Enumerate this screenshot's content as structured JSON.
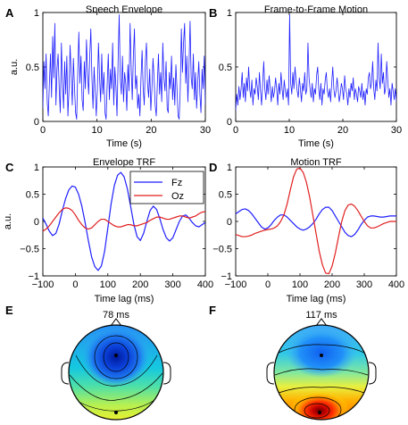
{
  "chart_data": [
    {
      "panel": "A",
      "type": "line",
      "title": "Speech Envelope",
      "xlabel": "Time (s)",
      "ylabel": "a.u.",
      "xlim": [
        0,
        30
      ],
      "ylim": [
        0,
        1
      ],
      "xticks": [
        "0",
        "10",
        "20",
        "30"
      ],
      "yticks": [
        "0",
        "0.5",
        "1"
      ],
      "grid": false,
      "series": [
        {
          "color": "#1f1fff",
          "values": [
            0.12,
            0.55,
            0.3,
            0.62,
            0.18,
            0.05,
            0.35,
            0.62,
            0.22,
            0.78,
            0.4,
            0.9,
            0.15,
            0.48,
            0.62,
            0.3,
            0.08,
            0.72,
            0.35,
            0.12,
            0.55,
            0.25,
            0.6,
            0.05,
            0.3,
            0.7,
            0.42,
            0.15,
            0.58,
            0.32,
            0.08,
            0.02,
            0.45,
            0.82,
            0.35,
            0.6,
            0.2,
            0.1,
            0.55,
            0.3,
            0.75,
            0.45,
            0.25,
            0.6,
            0.85,
            0.4,
            0.12,
            0.5,
            0.28,
            0.05,
            0.3,
            0.72,
            0.4,
            0.18,
            0.62,
            0.25,
            0.45,
            0.08,
            0.02,
            0.35,
            0.62,
            0.2,
            0.48,
            0.3,
            0.72,
            0.15,
            0.5,
            0.32,
            0.05,
            0.55,
            0.98,
            0.4,
            0.25,
            0.6,
            0.18,
            0.45,
            0.35,
            0.1,
            0.52,
            0.28,
            0.9,
            0.5,
            0.2,
            0.6,
            0.85,
            0.3,
            0.42,
            0.12,
            0.25,
            0.05,
            0.4,
            0.65,
            0.3,
            0.15,
            0.55,
            0.72,
            0.35,
            0.22,
            0.48,
            0.1,
            0.3,
            0.58,
            0.4,
            0.15,
            0.05,
            0.35,
            0.62,
            0.25,
            0.45,
            0.18,
            0.72,
            0.4,
            0.28,
            0.55,
            0.12,
            0.08,
            0.45,
            0.3,
            0.6,
            0.2,
            0.4,
            0.15,
            0.52,
            0.3,
            0.05,
            0.02,
            0.3,
            0.85,
            0.45,
            0.72,
            0.9,
            0.35,
            0.6,
            0.18,
            0.5,
            0.92,
            0.4,
            0.3,
            0.62,
            0.2,
            0.45,
            0.12,
            0.35,
            0.55,
            0.25,
            0.08,
            0.48,
            0.3,
            0.6,
            0.15
          ]
        }
      ]
    },
    {
      "panel": "B",
      "type": "line",
      "title": "Frame-to-Frame Motion",
      "xlabel": "Time (s)",
      "ylabel": "",
      "xlim": [
        0,
        30
      ],
      "ylim": [
        0,
        1
      ],
      "xticks": [
        "0",
        "10",
        "20",
        "30"
      ],
      "yticks": [
        "0",
        "0.5",
        "1"
      ],
      "grid": false,
      "series": [
        {
          "color": "#1f1fff",
          "values": [
            0.1,
            0.25,
            0.15,
            0.32,
            0.2,
            0.3,
            0.45,
            0.22,
            0.35,
            0.18,
            0.4,
            0.28,
            0.5,
            0.3,
            0.22,
            0.38,
            0.15,
            0.3,
            0.25,
            0.4,
            0.32,
            0.2,
            0.45,
            0.28,
            0.15,
            0.35,
            0.55,
            0.3,
            0.2,
            0.38,
            0.25,
            0.42,
            0.3,
            0.18,
            0.32,
            0.22,
            0.28,
            0.4,
            0.3,
            0.15,
            0.35,
            0.25,
            0.45,
            0.3,
            0.2,
            0.38,
            0.28,
            0.22,
            0.3,
            0.15,
            0.98,
            0.35,
            0.25,
            0.45,
            0.3,
            0.5,
            0.38,
            0.28,
            0.22,
            0.4,
            0.3,
            0.18,
            0.35,
            0.28,
            0.45,
            0.25,
            0.3,
            0.72,
            0.4,
            0.3,
            0.22,
            0.35,
            0.18,
            0.3,
            0.25,
            0.42,
            0.5,
            0.3,
            0.2,
            0.35,
            0.15,
            0.3,
            0.25,
            0.38,
            0.45,
            0.28,
            0.22,
            0.3,
            0.18,
            0.35,
            0.5,
            0.3,
            0.22,
            0.28,
            0.4,
            0.3,
            0.18,
            0.25,
            0.35,
            0.3,
            0.2,
            0.42,
            0.3,
            0.25,
            0.15,
            0.3,
            0.22,
            0.35,
            0.28,
            0.4,
            0.2,
            0.3,
            0.25,
            0.18,
            0.32,
            0.28,
            0.22,
            0.35,
            0.2,
            0.28,
            0.15,
            0.3,
            0.25,
            0.4,
            0.45,
            0.3,
            0.35,
            0.55,
            0.3,
            0.2,
            0.38,
            0.28,
            0.72,
            0.4,
            0.3,
            0.62,
            0.35,
            0.45,
            0.25,
            0.3,
            0.55,
            0.38,
            0.22,
            0.3,
            0.15,
            0.35,
            0.28,
            0.2,
            0.3,
            0.18
          ]
        }
      ]
    },
    {
      "panel": "C",
      "type": "line",
      "title": "Envelope TRF",
      "xlabel": "Time lag (ms)",
      "ylabel": "a.u.",
      "xlim": [
        -100,
        400
      ],
      "ylim": [
        -1,
        1
      ],
      "xticks": [
        "−100",
        "0",
        "100",
        "200",
        "300",
        "400"
      ],
      "yticks": [
        "−1",
        "−0.5",
        "0",
        "0.5",
        "1"
      ],
      "legend": "top-right",
      "grid": false,
      "series": [
        {
          "name": "Fz",
          "color": "#1f1fff",
          "x": [
            -100,
            -90,
            -80,
            -70,
            -60,
            -50,
            -40,
            -30,
            -20,
            -10,
            0,
            10,
            20,
            30,
            40,
            50,
            60,
            70,
            80,
            90,
            100,
            110,
            120,
            130,
            140,
            150,
            160,
            170,
            180,
            190,
            200,
            210,
            220,
            230,
            240,
            250,
            260,
            270,
            280,
            290,
            300,
            310,
            320,
            330,
            340,
            350,
            360,
            370,
            380,
            390,
            400
          ],
          "y": [
            0.06,
            -0.05,
            -0.18,
            -0.26,
            -0.22,
            -0.05,
            0.2,
            0.42,
            0.58,
            0.65,
            0.63,
            0.5,
            0.28,
            -0.02,
            -0.35,
            -0.65,
            -0.83,
            -0.9,
            -0.82,
            -0.55,
            -0.12,
            0.32,
            0.66,
            0.85,
            0.9,
            0.82,
            0.6,
            0.28,
            -0.05,
            -0.28,
            -0.35,
            -0.22,
            0.0,
            0.2,
            0.28,
            0.22,
            0.05,
            -0.15,
            -0.3,
            -0.36,
            -0.3,
            -0.15,
            0.0,
            0.1,
            0.12,
            0.06,
            -0.02,
            -0.08,
            -0.1,
            -0.06,
            -0.02
          ]
        },
        {
          "name": "Oz",
          "color": "#e01f1f",
          "x": [
            -100,
            -90,
            -80,
            -70,
            -60,
            -50,
            -40,
            -30,
            -20,
            -10,
            0,
            10,
            20,
            30,
            40,
            50,
            60,
            70,
            80,
            90,
            100,
            110,
            120,
            130,
            140,
            150,
            160,
            170,
            180,
            190,
            200,
            210,
            220,
            230,
            240,
            250,
            260,
            270,
            280,
            290,
            300,
            310,
            320,
            330,
            340,
            350,
            360,
            370,
            380,
            390,
            400
          ],
          "y": [
            -0.18,
            -0.14,
            -0.08,
            0.0,
            0.08,
            0.16,
            0.22,
            0.25,
            0.24,
            0.2,
            0.12,
            0.02,
            -0.06,
            -0.12,
            -0.14,
            -0.12,
            -0.06,
            0.0,
            0.04,
            0.04,
            0.0,
            -0.04,
            -0.08,
            -0.1,
            -0.1,
            -0.08,
            -0.06,
            -0.06,
            -0.08,
            -0.08,
            -0.06,
            -0.04,
            -0.02,
            0.02,
            0.05,
            0.08,
            0.08,
            0.06,
            0.04,
            0.04,
            0.06,
            0.08,
            0.1,
            0.1,
            0.08,
            0.06,
            0.08,
            0.1,
            0.14,
            0.17,
            0.18
          ]
        }
      ]
    },
    {
      "panel": "D",
      "type": "line",
      "title": "Motion TRF",
      "xlabel": "Time lag (ms)",
      "ylabel": "",
      "xlim": [
        -100,
        400
      ],
      "ylim": [
        -1,
        1
      ],
      "xticks": [
        "−100",
        "0",
        "100",
        "200",
        "300",
        "400"
      ],
      "yticks": [
        "−1",
        "−0.5",
        "0",
        "0.5",
        "1"
      ],
      "grid": false,
      "series": [
        {
          "name": "Fz",
          "color": "#1f1fff",
          "x": [
            -100,
            -90,
            -80,
            -70,
            -60,
            -50,
            -40,
            -30,
            -20,
            -10,
            0,
            10,
            20,
            30,
            40,
            50,
            60,
            70,
            80,
            90,
            100,
            110,
            120,
            130,
            140,
            150,
            160,
            170,
            180,
            190,
            200,
            210,
            220,
            230,
            240,
            250,
            260,
            270,
            280,
            290,
            300,
            310,
            320,
            330,
            340,
            350,
            360,
            370,
            380,
            390,
            400
          ],
          "y": [
            0.14,
            0.18,
            0.22,
            0.23,
            0.2,
            0.14,
            0.06,
            -0.02,
            -0.1,
            -0.14,
            -0.12,
            -0.06,
            0.02,
            0.08,
            0.12,
            0.12,
            0.08,
            0.02,
            -0.04,
            -0.1,
            -0.14,
            -0.16,
            -0.14,
            -0.1,
            -0.04,
            0.04,
            0.14,
            0.22,
            0.26,
            0.26,
            0.2,
            0.1,
            0.0,
            -0.1,
            -0.2,
            -0.26,
            -0.28,
            -0.24,
            -0.16,
            -0.06,
            0.02,
            0.08,
            0.1,
            0.1,
            0.09,
            0.08,
            0.08,
            0.09,
            0.1,
            0.1,
            0.1
          ]
        },
        {
          "name": "Oz",
          "color": "#e01f1f",
          "x": [
            -100,
            -90,
            -80,
            -70,
            -60,
            -50,
            -40,
            -30,
            -20,
            -10,
            0,
            10,
            20,
            30,
            40,
            50,
            60,
            70,
            80,
            90,
            100,
            110,
            120,
            130,
            140,
            150,
            160,
            170,
            180,
            190,
            200,
            210,
            220,
            230,
            240,
            250,
            260,
            270,
            280,
            290,
            300,
            310,
            320,
            330,
            340,
            350,
            360,
            370,
            380,
            390,
            400
          ],
          "y": [
            -0.24,
            -0.26,
            -0.28,
            -0.28,
            -0.27,
            -0.25,
            -0.22,
            -0.2,
            -0.18,
            -0.16,
            -0.15,
            -0.14,
            -0.12,
            -0.08,
            0.0,
            0.12,
            0.32,
            0.58,
            0.82,
            0.96,
            0.98,
            0.9,
            0.72,
            0.45,
            0.12,
            -0.22,
            -0.55,
            -0.8,
            -0.95,
            -0.96,
            -0.82,
            -0.58,
            -0.28,
            0.0,
            0.2,
            0.3,
            0.32,
            0.28,
            0.2,
            0.1,
            0.0,
            -0.08,
            -0.12,
            -0.12,
            -0.1,
            -0.07,
            -0.04,
            -0.02,
            0.0,
            0.0,
            0.0
          ]
        }
      ]
    },
    {
      "panel": "E",
      "type": "heatmap",
      "title": "78 ms",
      "colormap": "jet",
      "description_hidden": true
    },
    {
      "panel": "F",
      "type": "heatmap",
      "title": "117 ms",
      "colormap": "jet",
      "description_hidden": true
    }
  ],
  "panels": {
    "A": {
      "letter": "A",
      "title": "Speech Envelope",
      "ylabel": "a.u.",
      "xlabel": "Time (s)"
    },
    "B": {
      "letter": "B",
      "title": "Frame-to-Frame Motion",
      "xlabel": "Time (s)"
    },
    "C": {
      "letter": "C",
      "title": "Envelope TRF",
      "ylabel": "a.u.",
      "xlabel": "Time lag (ms)"
    },
    "D": {
      "letter": "D",
      "title": "Motion TRF",
      "xlabel": "Time lag (ms)"
    },
    "E": {
      "letter": "E",
      "title": "78 ms"
    },
    "F": {
      "letter": "F",
      "title": "117 ms"
    }
  },
  "legend": {
    "items": [
      {
        "label": "Fz",
        "color": "#1f1fff"
      },
      {
        "label": "Oz",
        "color": "#e01f1f"
      }
    ]
  },
  "colors": {
    "blue": "#1f1fff",
    "red": "#e01f1f"
  }
}
